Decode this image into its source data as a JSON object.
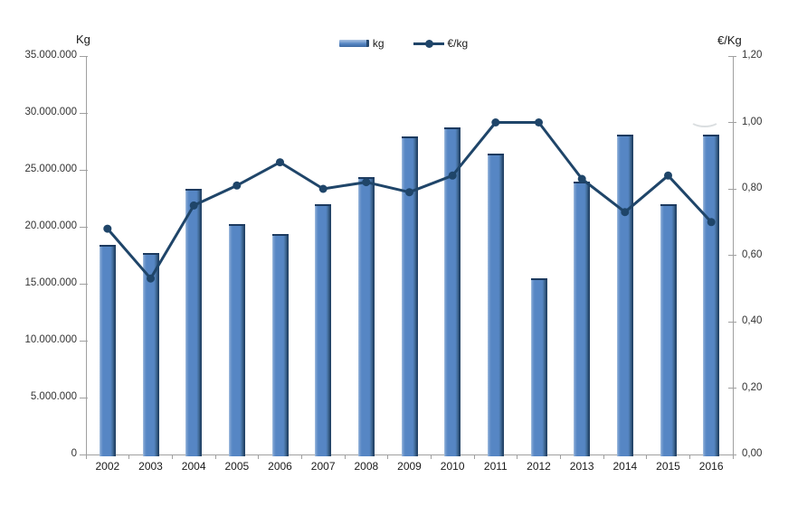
{
  "chart_data": {
    "type": "bar",
    "subtype": "combo-bar-line",
    "title": "",
    "categories": [
      "2002",
      "2003",
      "2004",
      "2005",
      "2006",
      "2007",
      "2008",
      "2009",
      "2010",
      "2011",
      "2012",
      "2013",
      "2014",
      "2015",
      "2016"
    ],
    "series": [
      {
        "name": "kg",
        "type": "bar",
        "axis": "left",
        "values": [
          18400000,
          17700000,
          23300000,
          20200000,
          19400000,
          22000000,
          24400000,
          27900000,
          28700000,
          26400000,
          15500000,
          24000000,
          28100000,
          22000000,
          28100000
        ]
      },
      {
        "name": "€/kg",
        "type": "line",
        "axis": "right",
        "values": [
          0.68,
          0.53,
          0.75,
          0.81,
          0.88,
          0.8,
          0.82,
          0.79,
          0.84,
          1.0,
          1.0,
          0.83,
          0.73,
          0.84,
          0.7
        ]
      }
    ],
    "left_axis": {
      "title": "Kg",
      "min": 0,
      "max": 35000000,
      "step": 5000000,
      "tick_labels": [
        "0",
        "5.000.000",
        "10.000.000",
        "15.000.000",
        "20.000.000",
        "25.000.000",
        "30.000.000",
        "35.000.000"
      ]
    },
    "right_axis": {
      "title": "€/Kg",
      "min": 0,
      "max": 1.2,
      "step": 0.2,
      "tick_labels": [
        "0,00",
        "0,20",
        "0,40",
        "0,60",
        "0,80",
        "1,00",
        "1,20"
      ]
    },
    "legend": [
      {
        "label": "kg",
        "marker": "bar"
      },
      {
        "label": "€/kg",
        "marker": "line"
      }
    ],
    "legend_position": "top-center",
    "grid": false
  },
  "colors": {
    "bar_fill": "#5686c4",
    "bar_highlight": "#a6c0e0",
    "bar_shadow": "#27496f",
    "bar_top_edge": "#1c3a5f",
    "line": "#1f4569",
    "axis_line": "#a0a0a0",
    "tick_text": "#333333",
    "label_text": "#1a1a1a"
  }
}
